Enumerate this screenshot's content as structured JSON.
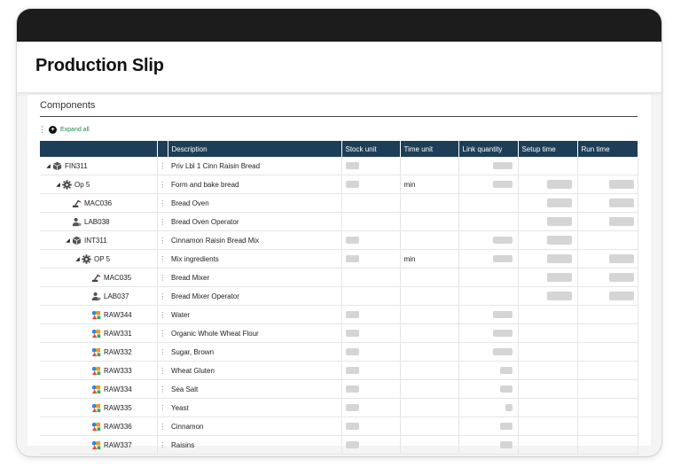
{
  "page": {
    "title": "Production Slip"
  },
  "section": {
    "title": "Components",
    "expand_all": "Expand all"
  },
  "table": {
    "columns": [
      "Description",
      "Stock unit",
      "Time unit",
      "Link quantity",
      "Setup time",
      "Run time"
    ],
    "rows": [
      {
        "level": 0,
        "caret": true,
        "icon": "product-icon",
        "code": "FIN311",
        "description": "Priv Lbl 1 Cinn Raisin Bread",
        "time_unit": "",
        "stock": true,
        "link": "wide",
        "setup": false,
        "run": false
      },
      {
        "level": 1,
        "caret": true,
        "icon": "gear-icon",
        "code": "Op 5",
        "description": "Form and bake bread",
        "time_unit": "min",
        "stock": true,
        "link": "wide",
        "setup": true,
        "run": true
      },
      {
        "level": 2,
        "caret": false,
        "icon": "machine-icon",
        "code": "MAC036",
        "description": "Bread Oven",
        "time_unit": "",
        "stock": false,
        "link": "none",
        "setup": true,
        "run": true
      },
      {
        "level": 2,
        "caret": false,
        "icon": "operator-icon",
        "code": "LAB038",
        "description": "Bread Oven Operator",
        "time_unit": "",
        "stock": false,
        "link": "none",
        "setup": true,
        "run": true
      },
      {
        "level": 2,
        "caret": true,
        "icon": "product-icon",
        "code": "INT311",
        "description": "Cinnamon Raisin Bread Mix",
        "time_unit": "",
        "stock": true,
        "link": "wide",
        "setup": true,
        "run": false
      },
      {
        "level": 3,
        "caret": true,
        "icon": "gear-icon",
        "code": "OP 5",
        "description": "Mix ingredients",
        "time_unit": "min",
        "stock": true,
        "link": "wide",
        "setup": true,
        "run": true
      },
      {
        "level": 4,
        "caret": false,
        "icon": "machine-icon",
        "code": "MAC035",
        "description": "Bread Mixer",
        "time_unit": "",
        "stock": false,
        "link": "none",
        "setup": true,
        "run": true
      },
      {
        "level": 4,
        "caret": false,
        "icon": "operator-icon",
        "code": "LAB037",
        "description": "Bread Mixer Operator",
        "time_unit": "",
        "stock": false,
        "link": "none",
        "setup": true,
        "run": true
      },
      {
        "level": 4,
        "caret": false,
        "icon": "material-icon",
        "code": "RAW344",
        "description": "Water",
        "time_unit": "",
        "stock": true,
        "link": "wide",
        "setup": false,
        "run": false
      },
      {
        "level": 4,
        "caret": false,
        "icon": "material-icon",
        "code": "RAW331",
        "description": "Organic Whole Wheat Flour",
        "time_unit": "",
        "stock": true,
        "link": "wide",
        "setup": false,
        "run": false
      },
      {
        "level": 4,
        "caret": false,
        "icon": "material-icon",
        "code": "RAW332",
        "description": "Sugar, Brown",
        "time_unit": "",
        "stock": true,
        "link": "wide",
        "setup": false,
        "run": false
      },
      {
        "level": 4,
        "caret": false,
        "icon": "material-icon",
        "code": "RAW333",
        "description": "Wheat Gluten",
        "time_unit": "",
        "stock": true,
        "link": "medium",
        "setup": false,
        "run": false
      },
      {
        "level": 4,
        "caret": false,
        "icon": "material-icon",
        "code": "RAW334",
        "description": "Sea Salt",
        "time_unit": "",
        "stock": true,
        "link": "medium",
        "setup": false,
        "run": false
      },
      {
        "level": 4,
        "caret": false,
        "icon": "material-icon",
        "code": "RAW335",
        "description": "Yeast",
        "time_unit": "",
        "stock": true,
        "link": "narrow",
        "setup": false,
        "run": false
      },
      {
        "level": 4,
        "caret": false,
        "icon": "material-icon",
        "code": "RAW336",
        "description": "Cinnamon",
        "time_unit": "",
        "stock": true,
        "link": "medium",
        "setup": false,
        "run": false
      },
      {
        "level": 4,
        "caret": false,
        "icon": "material-icon",
        "code": "RAW337",
        "description": "Raisins",
        "time_unit": "",
        "stock": true,
        "link": "medium",
        "setup": false,
        "run": false
      }
    ]
  },
  "colors": {
    "header_bg": "#1d3e57",
    "topbar": "#1c1c1c",
    "expand_link": "#1f8a4c",
    "placeholder": "#d5d5d5"
  }
}
